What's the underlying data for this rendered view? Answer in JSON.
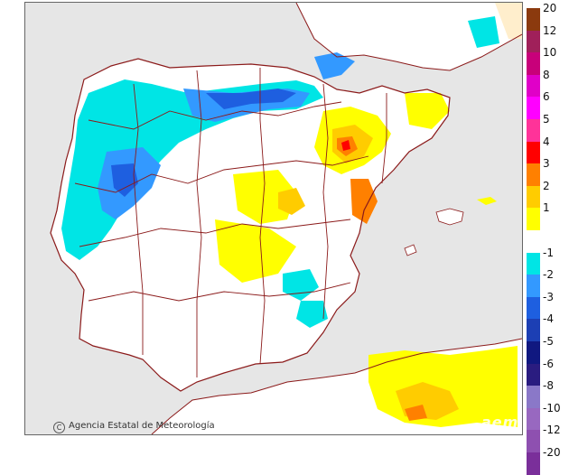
{
  "map": {
    "credit": "Agencia Estatal de Meteorología",
    "brand": "aemet"
  },
  "legend": {
    "positive_labels": [
      "20",
      "12",
      "10",
      "8",
      "6",
      "5",
      "4",
      "3",
      "2",
      "1"
    ],
    "positive_colors": [
      "#8b3a0e",
      "#a0205a",
      "#c8007a",
      "#e000c8",
      "#ff00ff",
      "#ff3399",
      "#ff0000",
      "#ff8000",
      "#ffcc00",
      "#ffff00"
    ],
    "neutral_color": "#ffffff",
    "negative_labels": [
      "-1",
      "-2",
      "-3",
      "-4",
      "-5",
      "-6",
      "-8",
      "-10",
      "-12",
      "-20"
    ],
    "negative_colors": [
      "#00e5e5",
      "#3399ff",
      "#1e5fe0",
      "#1c3fb4",
      "#101880",
      "#2a1c80",
      "#8a78c8",
      "#9868c0",
      "#8e50b0",
      "#7a2f9a"
    ]
  }
}
